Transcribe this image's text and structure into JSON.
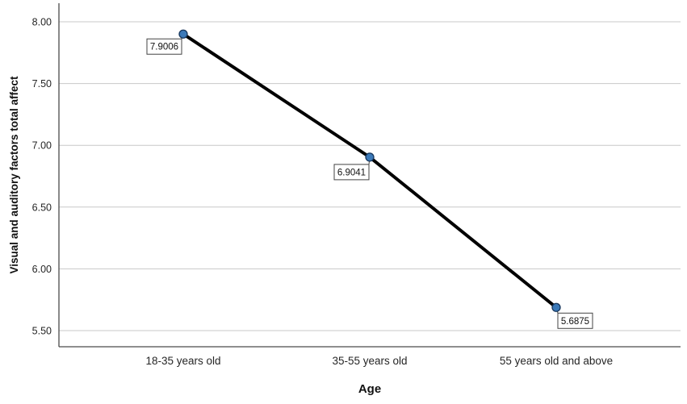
{
  "chart_data": {
    "type": "line",
    "title": "",
    "categories": [
      "18-35 years old",
      "35-55 years old",
      "55 years old and above"
    ],
    "values": [
      7.9006,
      6.9041,
      5.6875
    ],
    "point_labels": [
      "7.9006",
      "6.9041",
      "5.6875"
    ],
    "series": [
      {
        "name": "Visual and auditory factors total affect",
        "values": [
          7.9006,
          6.9041,
          5.6875
        ]
      }
    ],
    "xlabel": "Age",
    "ylabel": "Visual and auditory factors total affect",
    "ylim": [
      5.37,
      8.15
    ],
    "yticks": [
      "8.00",
      "7.50",
      "7.00",
      "6.50",
      "6.00",
      "5.50"
    ],
    "grid": "horizontal-only",
    "legend": "none",
    "colors": {
      "line": "#000000",
      "marker_fill": "#3b79b8",
      "marker_stroke": "#16365c",
      "gridline": "#c8c8c8",
      "axis": "#4a4a4a",
      "label_box_border": "#434343",
      "label_box_fill": "#ffffff",
      "background": "#ffffff"
    }
  }
}
